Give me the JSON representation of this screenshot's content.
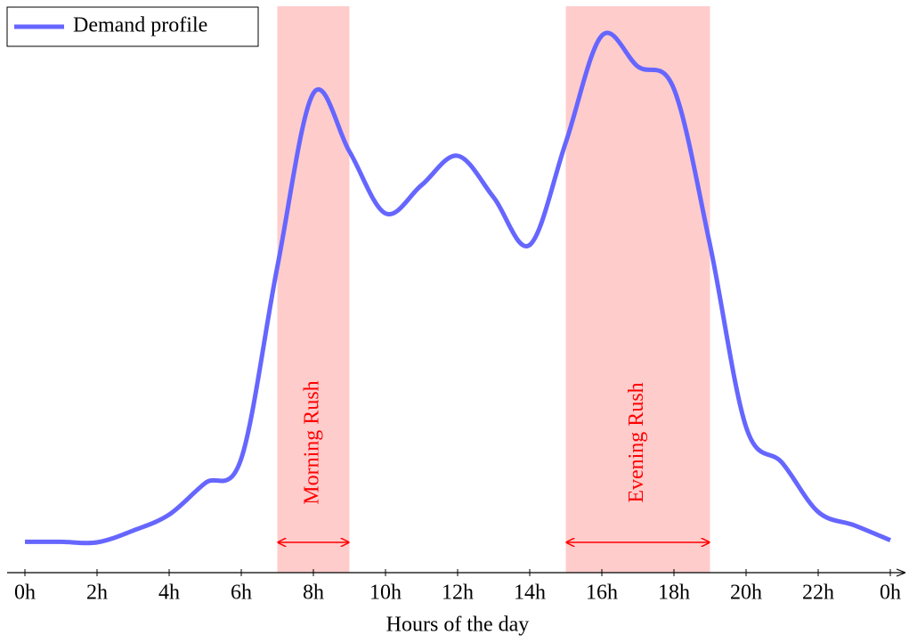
{
  "chart_data": {
    "type": "line",
    "xlabel": "Hours of the day",
    "x": [
      0,
      1,
      2,
      3,
      4,
      5,
      6,
      7,
      8,
      9,
      10,
      11,
      12,
      13,
      14,
      15,
      16,
      17,
      18,
      19,
      20,
      21,
      22,
      23,
      24
    ],
    "series": [
      {
        "name": "Demand profile",
        "color": "#6666ff",
        "values": [
          5.7,
          5.7,
          5.6,
          7.8,
          10.8,
          16.7,
          21.3,
          57.2,
          89.7,
          78.8,
          67.2,
          72.5,
          78,
          70.2,
          61.3,
          80.5,
          100.5,
          94.7,
          90.5,
          61.3,
          27.2,
          20.5,
          11.3,
          8.8,
          6
        ]
      }
    ],
    "xlim": [
      0,
      24
    ],
    "xticks": [
      {
        "value": 0,
        "label": "0h"
      },
      {
        "value": 2,
        "label": "2h"
      },
      {
        "value": 4,
        "label": "4h"
      },
      {
        "value": 6,
        "label": "6h"
      },
      {
        "value": 8,
        "label": "8h"
      },
      {
        "value": 10,
        "label": "10h"
      },
      {
        "value": 12,
        "label": "12h"
      },
      {
        "value": 14,
        "label": "14h"
      },
      {
        "value": 16,
        "label": "16h"
      },
      {
        "value": 18,
        "label": "18h"
      },
      {
        "value": 20,
        "label": "20h"
      },
      {
        "value": 22,
        "label": "22h"
      },
      {
        "value": 24,
        "label": "0h"
      }
    ],
    "annotations": [
      {
        "label": "Morning Rush",
        "start": 7,
        "end": 9,
        "color": "#ffcccc",
        "arrow_color": "#ff0000"
      },
      {
        "label": "Evening Rush",
        "start": 15,
        "end": 19,
        "color": "#ffcccc",
        "arrow_color": "#ff0000"
      }
    ],
    "legend": "upper left",
    "grid": false
  }
}
